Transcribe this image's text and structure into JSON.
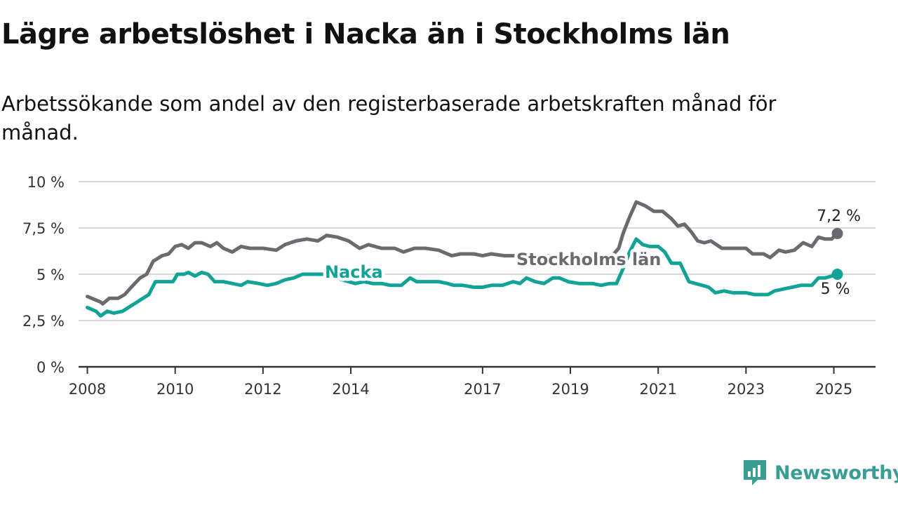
{
  "title": "Lägre arbetslöshet i Nacka än i Stockholms län",
  "subtitle": "Arbetssökande som andel av den registerbaserade arbetskraften månad för månad.",
  "brand": {
    "name": "Newsworthy",
    "color": "#3a9d94",
    "icon": "newsworthy-logo-icon"
  },
  "chart_data": {
    "type": "line",
    "ylim": [
      0,
      10
    ],
    "xlim": [
      2007.8,
      2025.95
    ],
    "yticks": [
      {
        "value": 0,
        "label": "0 %"
      },
      {
        "value": 2.5,
        "label": "2,5 %"
      },
      {
        "value": 5,
        "label": "5 %"
      },
      {
        "value": 7.5,
        "label": "7,5 %"
      },
      {
        "value": 10,
        "label": "10 %"
      }
    ],
    "xticks": [
      {
        "value": 2008,
        "label": "2008"
      },
      {
        "value": 2010,
        "label": "2010"
      },
      {
        "value": 2012,
        "label": "2012"
      },
      {
        "value": 2014,
        "label": "2014"
      },
      {
        "value": 2017,
        "label": "2017"
      },
      {
        "value": 2019,
        "label": "2019"
      },
      {
        "value": 2021,
        "label": "2021"
      },
      {
        "value": 2023,
        "label": "2023"
      },
      {
        "value": 2025,
        "label": "2025"
      }
    ],
    "grid": true,
    "series": [
      {
        "name": "Stockholms län",
        "color": "#6b6a70",
        "end_label": "7,2 %",
        "points": [
          [
            2008.0,
            3.8
          ],
          [
            2008.3,
            3.5
          ],
          [
            2008.35,
            3.4
          ],
          [
            2008.5,
            3.7
          ],
          [
            2008.7,
            3.7
          ],
          [
            2008.85,
            3.9
          ],
          [
            2009.0,
            4.3
          ],
          [
            2009.2,
            4.8
          ],
          [
            2009.35,
            5.0
          ],
          [
            2009.5,
            5.7
          ],
          [
            2009.7,
            6.0
          ],
          [
            2009.85,
            6.1
          ],
          [
            2010.0,
            6.5
          ],
          [
            2010.15,
            6.6
          ],
          [
            2010.3,
            6.4
          ],
          [
            2010.45,
            6.7
          ],
          [
            2010.6,
            6.7
          ],
          [
            2010.8,
            6.5
          ],
          [
            2010.95,
            6.7
          ],
          [
            2011.1,
            6.4
          ],
          [
            2011.3,
            6.2
          ],
          [
            2011.5,
            6.5
          ],
          [
            2011.7,
            6.4
          ],
          [
            2012.0,
            6.4
          ],
          [
            2012.3,
            6.3
          ],
          [
            2012.5,
            6.6
          ],
          [
            2012.75,
            6.8
          ],
          [
            2013.0,
            6.9
          ],
          [
            2013.25,
            6.8
          ],
          [
            2013.45,
            7.1
          ],
          [
            2013.7,
            7.0
          ],
          [
            2013.95,
            6.8
          ],
          [
            2014.2,
            6.4
          ],
          [
            2014.4,
            6.6
          ],
          [
            2014.7,
            6.4
          ],
          [
            2015.0,
            6.4
          ],
          [
            2015.2,
            6.2
          ],
          [
            2015.45,
            6.4
          ],
          [
            2015.7,
            6.4
          ],
          [
            2016.0,
            6.3
          ],
          [
            2016.3,
            6.0
          ],
          [
            2016.5,
            6.1
          ],
          [
            2016.8,
            6.1
          ],
          [
            2017.0,
            6.0
          ],
          [
            2017.2,
            6.1
          ],
          [
            2017.5,
            6.0
          ],
          [
            2017.8,
            6.0
          ],
          [
            2018.1,
            5.8
          ],
          [
            2018.4,
            6.0
          ],
          [
            2018.7,
            6.0
          ],
          [
            2019.0,
            6.0
          ],
          [
            2019.3,
            6.0
          ],
          [
            2019.6,
            5.9
          ],
          [
            2019.95,
            6.0
          ],
          [
            2020.1,
            6.4
          ],
          [
            2020.2,
            7.2
          ],
          [
            2020.35,
            8.1
          ],
          [
            2020.5,
            8.9
          ],
          [
            2020.7,
            8.7
          ],
          [
            2020.9,
            8.4
          ],
          [
            2021.1,
            8.4
          ],
          [
            2021.3,
            8.0
          ],
          [
            2021.45,
            7.6
          ],
          [
            2021.6,
            7.7
          ],
          [
            2021.75,
            7.3
          ],
          [
            2021.9,
            6.8
          ],
          [
            2022.05,
            6.7
          ],
          [
            2022.2,
            6.8
          ],
          [
            2022.45,
            6.4
          ],
          [
            2022.6,
            6.4
          ],
          [
            2022.8,
            6.4
          ],
          [
            2023.0,
            6.4
          ],
          [
            2023.15,
            6.1
          ],
          [
            2023.4,
            6.1
          ],
          [
            2023.55,
            5.9
          ],
          [
            2023.75,
            6.3
          ],
          [
            2023.9,
            6.2
          ],
          [
            2024.1,
            6.3
          ],
          [
            2024.3,
            6.7
          ],
          [
            2024.5,
            6.5
          ],
          [
            2024.65,
            7.0
          ],
          [
            2024.8,
            6.9
          ],
          [
            2024.95,
            6.9
          ],
          [
            2025.08,
            7.2
          ]
        ]
      },
      {
        "name": "Nacka",
        "color": "#13a396",
        "end_label": "5 %",
        "points": [
          [
            2008.0,
            3.2
          ],
          [
            2008.2,
            3.0
          ],
          [
            2008.3,
            2.75
          ],
          [
            2008.45,
            3.0
          ],
          [
            2008.6,
            2.9
          ],
          [
            2008.8,
            3.0
          ],
          [
            2009.0,
            3.3
          ],
          [
            2009.2,
            3.6
          ],
          [
            2009.4,
            3.9
          ],
          [
            2009.55,
            4.6
          ],
          [
            2009.75,
            4.6
          ],
          [
            2009.95,
            4.6
          ],
          [
            2010.05,
            5.0
          ],
          [
            2010.2,
            5.0
          ],
          [
            2010.3,
            5.1
          ],
          [
            2010.45,
            4.9
          ],
          [
            2010.6,
            5.1
          ],
          [
            2010.75,
            5.0
          ],
          [
            2010.9,
            4.6
          ],
          [
            2011.1,
            4.6
          ],
          [
            2011.3,
            4.5
          ],
          [
            2011.5,
            4.4
          ],
          [
            2011.65,
            4.6
          ],
          [
            2011.9,
            4.5
          ],
          [
            2012.1,
            4.4
          ],
          [
            2012.3,
            4.5
          ],
          [
            2012.5,
            4.7
          ],
          [
            2012.7,
            4.8
          ],
          [
            2012.9,
            5.0
          ],
          [
            2013.1,
            5.0
          ],
          [
            2013.3,
            5.0
          ],
          [
            2013.5,
            5.0
          ],
          [
            2013.8,
            4.7
          ],
          [
            2014.1,
            4.5
          ],
          [
            2014.3,
            4.6
          ],
          [
            2014.5,
            4.5
          ],
          [
            2014.7,
            4.5
          ],
          [
            2014.9,
            4.4
          ],
          [
            2015.15,
            4.4
          ],
          [
            2015.35,
            4.8
          ],
          [
            2015.5,
            4.6
          ],
          [
            2015.8,
            4.6
          ],
          [
            2016.0,
            4.6
          ],
          [
            2016.2,
            4.5
          ],
          [
            2016.35,
            4.4
          ],
          [
            2016.55,
            4.4
          ],
          [
            2016.8,
            4.3
          ],
          [
            2017.0,
            4.3
          ],
          [
            2017.2,
            4.4
          ],
          [
            2017.45,
            4.4
          ],
          [
            2017.7,
            4.6
          ],
          [
            2017.85,
            4.5
          ],
          [
            2018.0,
            4.8
          ],
          [
            2018.2,
            4.6
          ],
          [
            2018.4,
            4.5
          ],
          [
            2018.6,
            4.8
          ],
          [
            2018.75,
            4.8
          ],
          [
            2018.95,
            4.6
          ],
          [
            2019.2,
            4.5
          ],
          [
            2019.5,
            4.5
          ],
          [
            2019.7,
            4.4
          ],
          [
            2019.9,
            4.5
          ],
          [
            2020.05,
            4.5
          ],
          [
            2020.2,
            5.3
          ],
          [
            2020.35,
            6.2
          ],
          [
            2020.5,
            6.9
          ],
          [
            2020.65,
            6.6
          ],
          [
            2020.8,
            6.5
          ],
          [
            2021.0,
            6.5
          ],
          [
            2021.15,
            6.2
          ],
          [
            2021.3,
            5.6
          ],
          [
            2021.5,
            5.6
          ],
          [
            2021.7,
            4.6
          ],
          [
            2021.85,
            4.5
          ],
          [
            2022.0,
            4.4
          ],
          [
            2022.15,
            4.3
          ],
          [
            2022.3,
            4.0
          ],
          [
            2022.5,
            4.1
          ],
          [
            2022.7,
            4.0
          ],
          [
            2023.0,
            4.0
          ],
          [
            2023.2,
            3.9
          ],
          [
            2023.5,
            3.9
          ],
          [
            2023.65,
            4.1
          ],
          [
            2023.85,
            4.2
          ],
          [
            2024.05,
            4.3
          ],
          [
            2024.25,
            4.4
          ],
          [
            2024.5,
            4.4
          ],
          [
            2024.65,
            4.8
          ],
          [
            2024.8,
            4.8
          ],
          [
            2024.95,
            4.9
          ],
          [
            2025.08,
            5.0
          ]
        ]
      }
    ]
  }
}
